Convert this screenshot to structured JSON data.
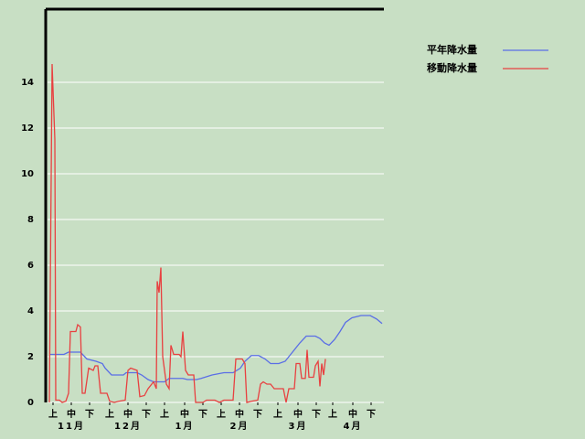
{
  "chart_data": {
    "type": "line",
    "xlim": [
      0,
      184
    ],
    "ylim": [
      0,
      17.2
    ],
    "yticks": [
      0,
      2,
      4,
      6,
      8,
      10,
      12,
      14
    ],
    "xticks": [
      {
        "value": 3,
        "label": "上"
      },
      {
        "value": 13,
        "label": "中"
      },
      {
        "value": 23,
        "label": "下"
      },
      {
        "value": 34,
        "label": "上"
      },
      {
        "value": 44,
        "label": "中"
      },
      {
        "value": 54,
        "label": "下"
      },
      {
        "value": 64,
        "label": "上"
      },
      {
        "value": 75,
        "label": "中"
      },
      {
        "value": 85,
        "label": "下"
      },
      {
        "value": 95,
        "label": "上"
      },
      {
        "value": 105,
        "label": "中"
      },
      {
        "value": 115,
        "label": "下"
      },
      {
        "value": 126,
        "label": "上"
      },
      {
        "value": 137,
        "label": "中"
      },
      {
        "value": 147,
        "label": "下"
      },
      {
        "value": 156,
        "label": "上"
      },
      {
        "value": 167,
        "label": "中"
      },
      {
        "value": 177,
        "label": "下"
      }
    ],
    "month_labels": [
      {
        "value": 13,
        "label": "11月"
      },
      {
        "value": 44,
        "label": "12月"
      },
      {
        "value": 75,
        "label": "1月"
      },
      {
        "value": 105,
        "label": "2月"
      },
      {
        "value": 137,
        "label": "3月"
      },
      {
        "value": 167,
        "label": "4月"
      }
    ],
    "grid": true,
    "legend": "top-right",
    "series": [
      {
        "name": "平年降水量",
        "color": "#5a6ee6",
        "x": [
          1.5,
          9,
          11.5,
          18,
          21.5,
          26.5,
          30,
          31.5,
          35,
          41.5,
          43,
          49,
          51.5,
          55,
          58,
          64,
          66.5,
          74,
          76.5,
          81.5,
          84,
          90,
          96.5,
          101.5,
          105.5,
          108,
          111.5,
          115.5,
          119,
          122,
          126.5,
          130,
          134,
          138,
          141.5,
          146.5,
          149,
          151.5,
          154,
          157,
          160,
          163,
          166.5,
          171.5,
          176.5,
          180,
          183
        ],
        "values": [
          2.1,
          2.1,
          2.2,
          2.2,
          1.9,
          1.8,
          1.7,
          1.5,
          1.2,
          1.2,
          1.3,
          1.3,
          1.2,
          1.0,
          0.9,
          0.9,
          1.05,
          1.05,
          1.0,
          1.0,
          1.05,
          1.2,
          1.3,
          1.3,
          1.5,
          1.8,
          2.05,
          2.05,
          1.9,
          1.7,
          1.7,
          1.8,
          2.2,
          2.6,
          2.9,
          2.9,
          2.8,
          2.6,
          2.5,
          2.75,
          3.1,
          3.5,
          3.7,
          3.8,
          3.8,
          3.65,
          3.45
        ]
      },
      {
        "name": "移動降水量",
        "color": "#e84040",
        "x": [
          1,
          2.5,
          4,
          4.5,
          6.5,
          8,
          10,
          11.5,
          12.5,
          15.5,
          16.5,
          18,
          19,
          20.5,
          22.5,
          25,
          26,
          27.5,
          29,
          32.5,
          34,
          36.5,
          39,
          42.5,
          44,
          45.5,
          49,
          50.5,
          53,
          55,
          58,
          59.5,
          60,
          61,
          62,
          63,
          65,
          66.5,
          67.5,
          69,
          72,
          73,
          74,
          75.5,
          77,
          80,
          81,
          85,
          87,
          91.5,
          94,
          96.5,
          101.5,
          103,
          106.5,
          108,
          109,
          111.5,
          115,
          116.5,
          118,
          120,
          122,
          124,
          129,
          130.5,
          132,
          135,
          136,
          138,
          139,
          141,
          142,
          143,
          145.5,
          146.5,
          148,
          149,
          150,
          151,
          152
        ],
        "values": [
          0,
          14.8,
          11.5,
          0.1,
          0.1,
          0,
          0.05,
          0.4,
          3.1,
          3.1,
          3.4,
          3.3,
          0.4,
          0.4,
          1.5,
          1.4,
          1.6,
          1.6,
          0.4,
          0.4,
          0.05,
          0,
          0.05,
          0.1,
          1.4,
          1.5,
          1.4,
          0.25,
          0.3,
          0.6,
          0.9,
          0.6,
          5.3,
          4.8,
          5.9,
          2,
          0.8,
          0.6,
          2.5,
          2.1,
          2.1,
          2,
          3.1,
          1.4,
          1.2,
          1.2,
          0,
          0,
          0.1,
          0.1,
          0,
          0.1,
          0.1,
          1.9,
          1.9,
          1.7,
          0,
          0.05,
          0.1,
          0.8,
          0.9,
          0.8,
          0.8,
          0.6,
          0.6,
          0,
          0.6,
          0.6,
          1.7,
          1.7,
          1.05,
          1.05,
          2.3,
          1.1,
          1.1,
          1.6,
          1.8,
          0.7,
          1.7,
          1.2,
          1.9
        ]
      }
    ]
  }
}
